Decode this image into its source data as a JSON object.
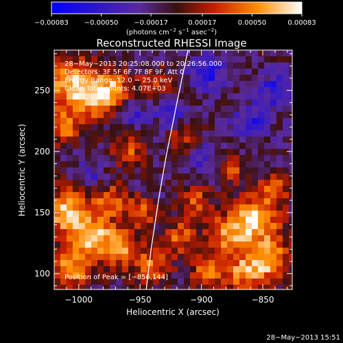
{
  "chart_data": {
    "type": "heatmap",
    "title": "Reconstructed RHESSI Image",
    "xlabel": "Heliocentric X (arcsec)",
    "ylabel": "Heliocentric Y (arcsec)",
    "xlim": [
      -1020,
      -826
    ],
    "ylim": [
      87,
      283
    ],
    "x_ticks": [
      -1000,
      -950,
      -900,
      -850
    ],
    "x_tick_labels": [
      "−1000",
      "−950",
      "−900",
      "−850"
    ],
    "y_ticks": [
      100,
      150,
      200,
      250
    ],
    "y_tick_labels": [
      "100",
      "150",
      "200",
      "250"
    ],
    "colorbar": {
      "range": [
        -0.00083,
        0.00083
      ],
      "ticks": [
        -0.00083,
        -0.0005,
        -0.00017,
        0.00017,
        0.0005,
        0.00083
      ],
      "tick_labels": [
        "−0.00083",
        "−0.00050",
        "−0.00017",
        "0.00017",
        "0.00050",
        "0.00083"
      ],
      "unit_prefix": "(photons cm",
      "unit_exp1": "−2",
      "unit_mid1": " s",
      "unit_exp2": "−1",
      "unit_mid2": " asec",
      "unit_exp3": "−2",
      "unit_suffix": ")"
    },
    "info_lines": [
      "28−May−2013 20:25:08.000 to 20:26:56.000",
      "Detectors: 3F 5F 6F 7F 8F 9F, Att 0",
      "Energy Range: 12.0 − 25.0 keV",
      "Clean     Total counts: 4.07E+03"
    ],
    "peak_label": "Position of Peak = [−856,144]",
    "limb_curve": [
      [
        -945,
        87
      ],
      [
        -941,
        120
      ],
      [
        -935,
        160
      ],
      [
        -929,
        195
      ],
      [
        -920,
        240
      ],
      [
        -911,
        283
      ]
    ],
    "blobs": [
      {
        "x": -1005,
        "y": 256,
        "r": 15,
        "v": 0.00075
      },
      {
        "x": -985,
        "y": 242,
        "r": 12,
        "v": 0.0006
      },
      {
        "x": -1012,
        "y": 220,
        "r": 10,
        "v": 0.00055
      },
      {
        "x": -970,
        "y": 252,
        "r": 10,
        "v": 0.00052
      },
      {
        "x": -960,
        "y": 200,
        "r": 10,
        "v": 0.00045
      },
      {
        "x": -938,
        "y": 255,
        "r": 9,
        "v": 0.0004
      },
      {
        "x": -1010,
        "y": 150,
        "r": 14,
        "v": 0.00078
      },
      {
        "x": -988,
        "y": 130,
        "r": 12,
        "v": 0.0007
      },
      {
        "x": -1005,
        "y": 105,
        "r": 12,
        "v": 0.00065
      },
      {
        "x": -965,
        "y": 120,
        "r": 11,
        "v": 0.00062
      },
      {
        "x": -975,
        "y": 160,
        "r": 10,
        "v": 0.00055
      },
      {
        "x": -950,
        "y": 150,
        "r": 9,
        "v": 0.0005
      },
      {
        "x": -940,
        "y": 105,
        "r": 10,
        "v": 0.00055
      },
      {
        "x": -918,
        "y": 130,
        "r": 10,
        "v": 0.0005
      },
      {
        "x": -905,
        "y": 160,
        "r": 9,
        "v": 0.00045
      },
      {
        "x": -915,
        "y": 210,
        "r": 9,
        "v": 0.00038
      },
      {
        "x": -880,
        "y": 130,
        "r": 12,
        "v": 0.0006
      },
      {
        "x": -856,
        "y": 144,
        "r": 14,
        "v": 0.00083
      },
      {
        "x": -845,
        "y": 110,
        "r": 12,
        "v": 0.00072
      },
      {
        "x": -866,
        "y": 100,
        "r": 10,
        "v": 0.0006
      },
      {
        "x": -895,
        "y": 100,
        "r": 10,
        "v": 0.00055
      },
      {
        "x": -840,
        "y": 170,
        "r": 9,
        "v": 0.00045
      },
      {
        "x": -875,
        "y": 185,
        "r": 8,
        "v": 0.0004
      },
      {
        "x": -840,
        "y": 250,
        "r": 9,
        "v": -0.00045
      },
      {
        "x": -860,
        "y": 225,
        "r": 10,
        "v": -0.0004
      },
      {
        "x": -895,
        "y": 265,
        "r": 10,
        "v": -0.0005
      },
      {
        "x": -925,
        "y": 230,
        "r": 8,
        "v": -0.00035
      },
      {
        "x": -990,
        "y": 180,
        "r": 9,
        "v": -0.0003
      },
      {
        "x": -955,
        "y": 230,
        "r": 8,
        "v": -0.00032
      },
      {
        "x": -900,
        "y": 195,
        "r": 8,
        "v": -0.0003
      }
    ]
  },
  "footer": {
    "date": "28−May−2013 15:51"
  }
}
